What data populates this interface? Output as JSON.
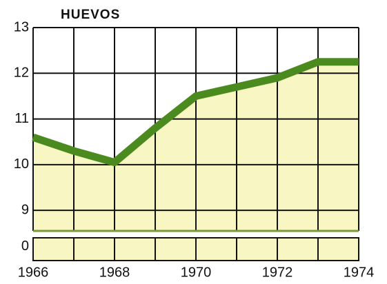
{
  "chart_data": {
    "type": "area",
    "title": "HUEVOS",
    "x": [
      1966,
      1967,
      1968,
      1969,
      1970,
      1971,
      1972,
      1973,
      1974
    ],
    "series": [
      {
        "name": "Huevos",
        "color": "#4a8a1e",
        "fill": "#f8f6c2",
        "values": [
          10.6,
          10.3,
          10.05,
          10.8,
          11.5,
          11.7,
          11.9,
          12.25,
          12.25
        ]
      }
    ],
    "xlim": [
      1966,
      1974
    ],
    "xticks": [
      1966,
      1968,
      1970,
      1972,
      1974
    ],
    "ylim": [
      8.55,
      13
    ],
    "yticks": [
      0,
      9,
      10,
      11,
      12,
      13
    ],
    "axis_break": true,
    "grid": true
  }
}
